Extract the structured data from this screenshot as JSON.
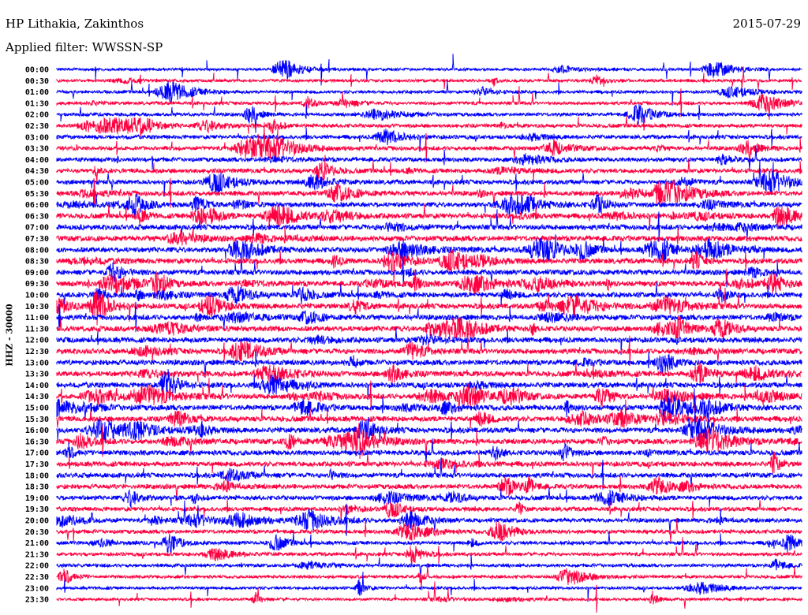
{
  "header": {
    "station": "HP Lithakia, Zakinthos",
    "filter": "Applied filter: WWSSN-SP",
    "date": "2015-07-29"
  },
  "chart_data": {
    "type": "line",
    "title": "HP Lithakia, Zakinthos",
    "subtitle": "Applied filter: WWSSN-SP",
    "ylabel": "HHZ - 30000",
    "xlabel": "",
    "row_minutes": 30,
    "row_labels": [
      "00:00",
      "00:30",
      "01:00",
      "01:30",
      "02:00",
      "02:30",
      "03:00",
      "03:30",
      "04:00",
      "04:30",
      "05:00",
      "05:30",
      "06:00",
      "06:30",
      "07:00",
      "07:30",
      "08:00",
      "08:30",
      "09:00",
      "09:30",
      "10:00",
      "10:30",
      "11:00",
      "11:30",
      "12:00",
      "12:30",
      "13:00",
      "13:30",
      "14:00",
      "14:30",
      "15:00",
      "15:30",
      "16:00",
      "16:30",
      "17:00",
      "17:30",
      "18:00",
      "18:30",
      "19:00",
      "19:30",
      "20:00",
      "20:30",
      "21:00",
      "21:30",
      "22:00",
      "22:30",
      "23:00",
      "23:30"
    ],
    "series_colors": [
      "#0000ff",
      "#ff0040"
    ],
    "grid": false
  }
}
